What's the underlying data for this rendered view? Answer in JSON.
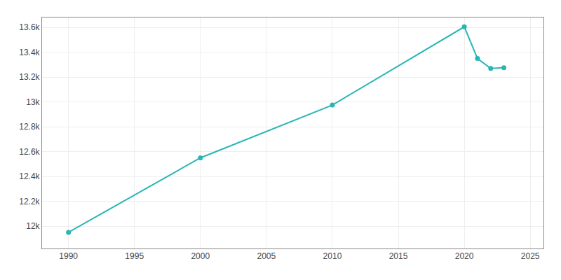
{
  "chart_data": {
    "type": "line",
    "x": [
      1990,
      2000,
      2010,
      2020,
      2021,
      2022,
      2023
    ],
    "values": [
      11950,
      12550,
      12975,
      13605,
      13350,
      13270,
      13275
    ],
    "color": "#2ab5b5",
    "marker": "circle",
    "xlim": [
      1988,
      2026
    ],
    "ylim": [
      11820,
      13680
    ],
    "xticks": [
      1990,
      1995,
      2000,
      2005,
      2010,
      2015,
      2020,
      2025
    ],
    "yticks": [
      {
        "value": 12000,
        "label": "12k"
      },
      {
        "value": 12200,
        "label": "12.2k"
      },
      {
        "value": 12400,
        "label": "12.4k"
      },
      {
        "value": 12600,
        "label": "12.6k"
      },
      {
        "value": 12800,
        "label": "12.8k"
      },
      {
        "value": 13000,
        "label": "13k"
      },
      {
        "value": 13200,
        "label": "13.2k"
      },
      {
        "value": 13400,
        "label": "13.4k"
      },
      {
        "value": 13600,
        "label": "13.6k"
      }
    ],
    "grid": true
  }
}
